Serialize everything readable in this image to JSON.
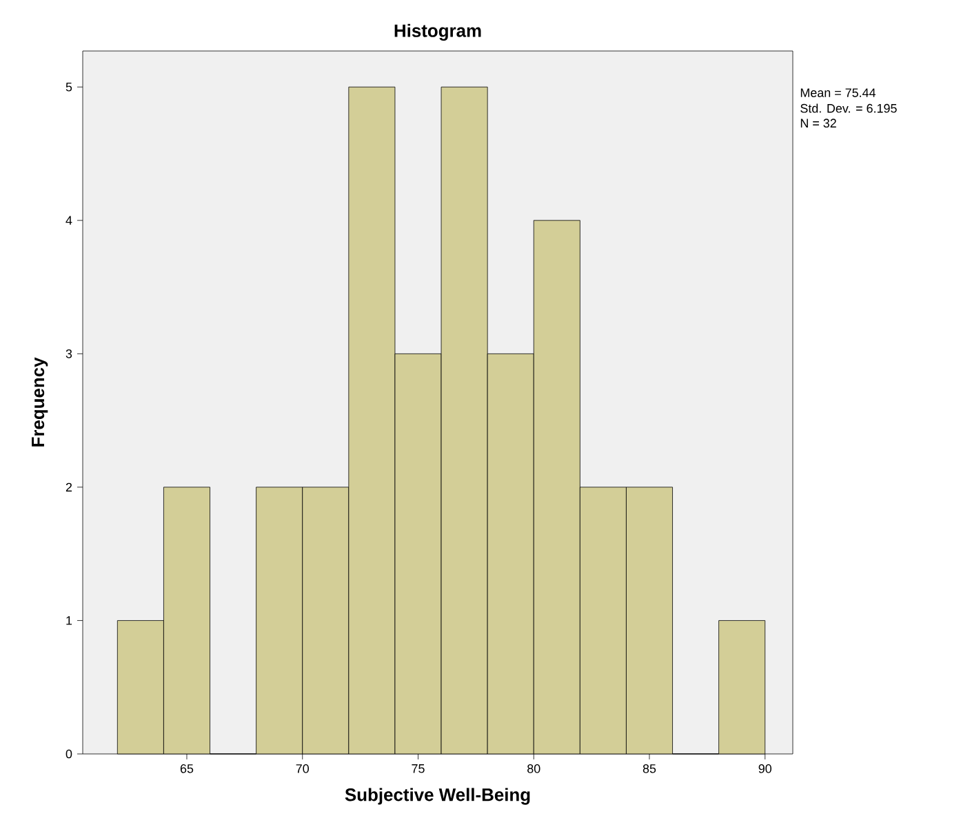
{
  "chart_data": {
    "type": "histogram",
    "title": "Histogram",
    "xlabel": "Subjective Well-Being",
    "ylabel": "Frequency",
    "bins": [
      62,
      64,
      66,
      68,
      70,
      72,
      74,
      76,
      78,
      80,
      82,
      84,
      86,
      88,
      90
    ],
    "values": [
      1,
      2,
      0,
      2,
      2,
      5,
      3,
      5,
      3,
      4,
      2,
      2,
      0,
      1
    ],
    "color": "#d3ce97",
    "xlim": [
      60.5,
      91.2
    ],
    "ylim": [
      0,
      5.27
    ],
    "xticks": [
      65,
      70,
      75,
      80,
      85,
      90
    ],
    "yticks": [
      0,
      1,
      2,
      3,
      4,
      5
    ],
    "grid": false,
    "annotations": [
      "Mean = 75.44",
      "Std. Dev. = 6.195",
      "N = 32"
    ]
  }
}
